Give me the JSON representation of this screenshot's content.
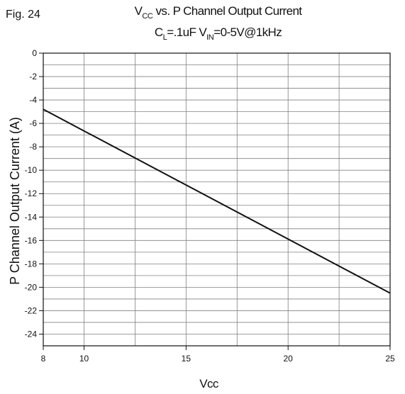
{
  "figure": {
    "label": "Fig. 24"
  },
  "chart_data": {
    "type": "line",
    "title": {
      "line1": {
        "prefix": "V",
        "sub": "CC",
        "rest": " vs. P Channel Output Current"
      },
      "line2": {
        "c": "C",
        "c_sub": "L",
        "c_rest": "=.1uF  V",
        "v_sub": "IN",
        "v_rest": "=0-5V@1kHz"
      }
    },
    "xlabel": "Vcc",
    "ylabel": "P Channel Output Current (A)",
    "xlim": [
      8,
      25
    ],
    "ylim": [
      -25,
      0
    ],
    "x_ticks": [
      8,
      10,
      15,
      20,
      25
    ],
    "x_grid": [
      10,
      12.5,
      15,
      17.5,
      20,
      22.5
    ],
    "y_ticks": [
      0,
      -2,
      -4,
      -6,
      -8,
      -10,
      -12,
      -14,
      -16,
      -18,
      -20,
      -22,
      -24
    ],
    "y_grid_step": 1,
    "grid": true,
    "series": [
      {
        "x": [
          8,
          25
        ],
        "y": [
          -4.8,
          -20.5
        ]
      }
    ],
    "colors": {
      "line": "#111111",
      "grid": "#808080",
      "axis": "#111111"
    }
  }
}
